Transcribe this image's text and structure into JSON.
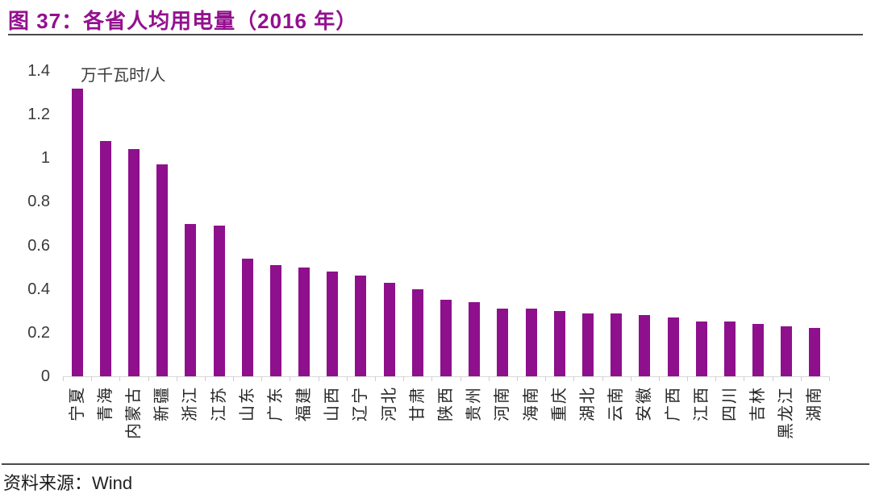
{
  "figure": {
    "title": "图 37：各省人均用电量（2016 年）",
    "source_prefix": "资料来源：",
    "source_name": "Wind"
  },
  "colors": {
    "title_purple": "#93108F",
    "bar_purple": "#8E108C",
    "divider_gray": "#4A4A4A",
    "baseline_gray": "#D9D9D9",
    "axis_text": "#3A3A3A"
  },
  "chart_data": {
    "type": "bar",
    "title": "各省人均用电量（2016 年）",
    "unit_label": "万千瓦时/人",
    "xlabel": "",
    "ylabel": "万千瓦时/人",
    "categories": [
      "宁夏",
      "青海",
      "内蒙古",
      "新疆",
      "浙江",
      "江苏",
      "山东",
      "广东",
      "福建",
      "山西",
      "辽宁",
      "河北",
      "甘肃",
      "陕西",
      "贵州",
      "河南",
      "海南",
      "重庆",
      "湖北",
      "云南",
      "安徽",
      "广西",
      "江西",
      "四川",
      "吉林",
      "黑龙江",
      "湖南"
    ],
    "values": [
      1.32,
      1.08,
      1.04,
      0.97,
      0.7,
      0.69,
      0.54,
      0.51,
      0.5,
      0.48,
      0.46,
      0.43,
      0.4,
      0.35,
      0.34,
      0.31,
      0.31,
      0.3,
      0.29,
      0.29,
      0.28,
      0.27,
      0.25,
      0.25,
      0.24,
      0.23,
      0.22
    ],
    "ylim": [
      0,
      1.4
    ],
    "ytick_values": [
      1.4,
      1.2,
      1,
      0.8,
      0.6,
      0.4,
      0.2,
      0
    ],
    "ytick_labels": [
      "1.4",
      "1.2",
      "1",
      "0.8",
      "0.6",
      "0.4",
      "0.2",
      "0"
    ],
    "grid": false,
    "legend_position": "none",
    "x_label_rotation_deg": -90
  }
}
